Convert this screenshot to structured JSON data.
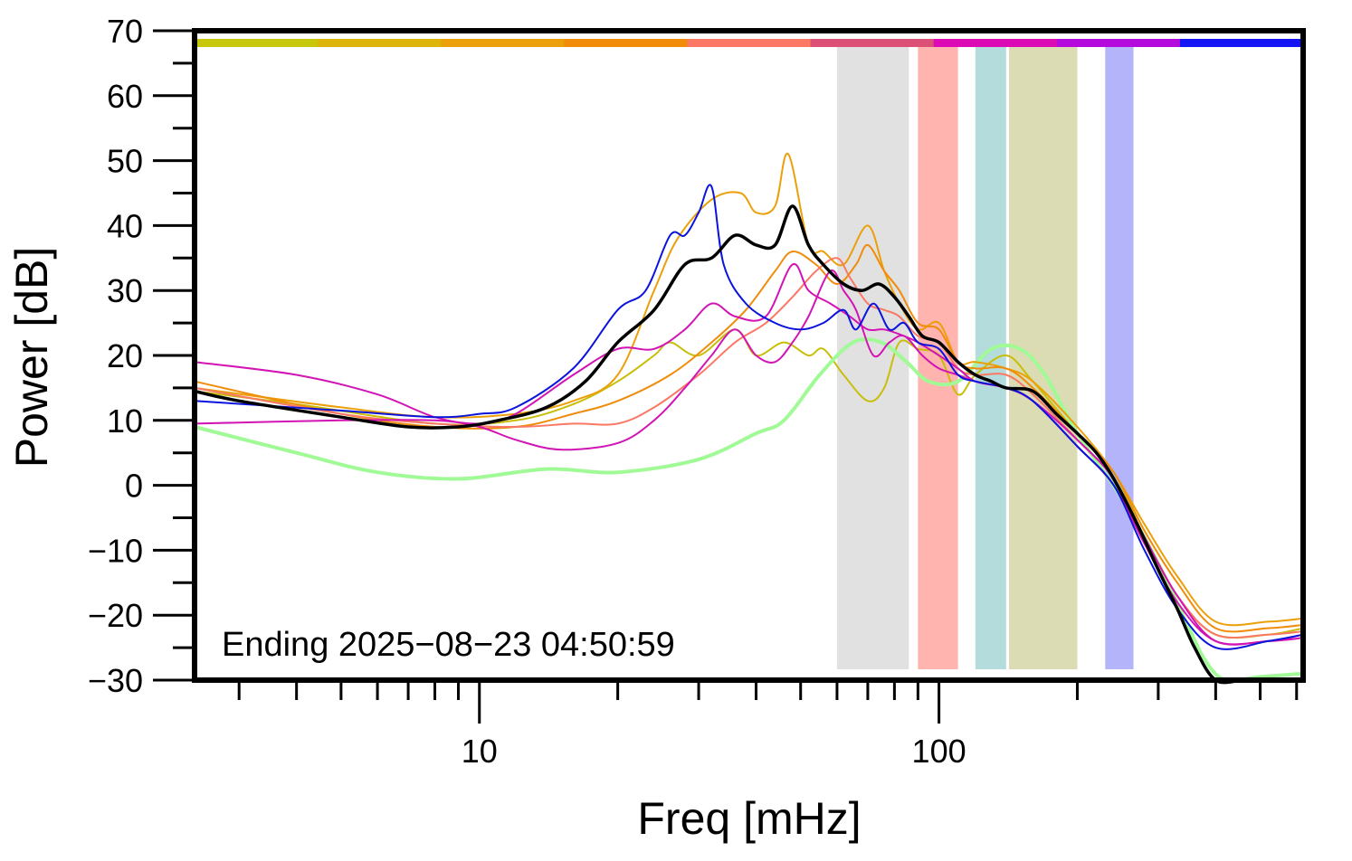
{
  "chart_data": {
    "type": "line",
    "xlabel": "Freq [mHz]",
    "ylabel": "Power [dB]",
    "x_scale": "log",
    "xlim": [
      2.4,
      620
    ],
    "ylim": [
      -30,
      70
    ],
    "x_ticklabels": [
      "10",
      "100"
    ],
    "y_ticklabels": [
      "70",
      "60",
      "50",
      "40",
      "30",
      "20",
      "10",
      "0",
      "−10",
      "−20",
      "−30"
    ],
    "annotation": "Ending 2025−08−23 04:50:59",
    "grid": false,
    "legend": "none",
    "colors": {
      "black": "#000000",
      "blue": "#0a14dc",
      "orange": "#eba00a",
      "orange2": "#f08c0a",
      "salmon": "#fa7864",
      "magenta": "#d214b4",
      "yellowgreen": "#c8be0a",
      "lightgreen": "#a0fa96"
    },
    "bands": [
      {
        "x0": 60,
        "x1": 86,
        "color": "#e1e1e1"
      },
      {
        "x0": 90,
        "x1": 110,
        "color": "#ffb4af"
      },
      {
        "x0": 120,
        "x1": 140,
        "color": "#b4dcdc"
      },
      {
        "x0": 142,
        "x1": 200,
        "color": "#dcdcb4"
      },
      {
        "x0": 230,
        "x1": 265,
        "color": "#b4b4fa"
      }
    ],
    "color_bar": [
      "#c8c80a",
      "#dcb40a",
      "#eba00a",
      "#f08c0a",
      "#fa7864",
      "#dc5078",
      "#dc0ab4",
      "#b40adc",
      "#1414f5"
    ],
    "series": [
      {
        "color_key": "yellowgreen",
        "width": 2,
        "points": [
          [
            2.4,
            14.5
          ],
          [
            4,
            12.5
          ],
          [
            8,
            9.5
          ],
          [
            12,
            10
          ],
          [
            16,
            12.5
          ],
          [
            20,
            16
          ],
          [
            24,
            20
          ],
          [
            26,
            22
          ],
          [
            30,
            20
          ],
          [
            36,
            24
          ],
          [
            40,
            20
          ],
          [
            46,
            22
          ],
          [
            52,
            20
          ],
          [
            56,
            21
          ],
          [
            62,
            17
          ],
          [
            70,
            13
          ],
          [
            76,
            15
          ],
          [
            82,
            22
          ],
          [
            90,
            21
          ],
          [
            100,
            20
          ],
          [
            110,
            14
          ],
          [
            120,
            17
          ],
          [
            140,
            20
          ],
          [
            160,
            16
          ],
          [
            200,
            8
          ],
          [
            240,
            2
          ],
          [
            280,
            -8
          ],
          [
            330,
            -17
          ],
          [
            400,
            -23
          ],
          [
            520,
            -23
          ],
          [
            620,
            -22
          ]
        ]
      },
      {
        "color_key": "lightgreen",
        "width": 4,
        "points": [
          [
            2.4,
            9
          ],
          [
            4,
            5
          ],
          [
            6,
            2
          ],
          [
            9,
            1
          ],
          [
            14,
            2.5
          ],
          [
            20,
            2
          ],
          [
            30,
            4
          ],
          [
            40,
            8
          ],
          [
            46,
            10
          ],
          [
            55,
            17
          ],
          [
            65,
            22
          ],
          [
            75,
            22
          ],
          [
            85,
            19
          ],
          [
            95,
            16
          ],
          [
            110,
            16
          ],
          [
            130,
            21
          ],
          [
            150,
            21
          ],
          [
            170,
            17
          ],
          [
            200,
            8
          ],
          [
            250,
            -2
          ],
          [
            300,
            -12
          ],
          [
            350,
            -22
          ],
          [
            380,
            -27
          ],
          [
            420,
            -30
          ],
          [
            500,
            -29.5
          ],
          [
            620,
            -29
          ]
        ]
      },
      {
        "color_key": "orange",
        "width": 2,
        "points": [
          [
            2.4,
            15
          ],
          [
            5,
            12
          ],
          [
            8,
            10.5
          ],
          [
            12,
            11
          ],
          [
            16,
            13
          ],
          [
            20,
            17
          ],
          [
            24,
            30
          ],
          [
            27,
            38
          ],
          [
            32,
            44
          ],
          [
            37,
            45
          ],
          [
            40,
            42
          ],
          [
            44,
            43
          ],
          [
            47,
            51
          ],
          [
            52,
            37
          ],
          [
            56,
            36
          ],
          [
            62,
            34
          ],
          [
            70,
            40
          ],
          [
            76,
            33
          ],
          [
            82,
            28
          ],
          [
            90,
            24
          ],
          [
            100,
            25
          ],
          [
            110,
            19
          ],
          [
            120,
            19
          ],
          [
            140,
            18
          ],
          [
            160,
            16
          ],
          [
            200,
            9
          ],
          [
            240,
            2
          ],
          [
            280,
            -6
          ],
          [
            330,
            -14
          ],
          [
            400,
            -21
          ],
          [
            520,
            -21
          ],
          [
            620,
            -20.5
          ]
        ]
      },
      {
        "color_key": "orange2",
        "width": 2,
        "points": [
          [
            2.4,
            16
          ],
          [
            5,
            11
          ],
          [
            8,
            9
          ],
          [
            12,
            9
          ],
          [
            16,
            11
          ],
          [
            20,
            13
          ],
          [
            26,
            17
          ],
          [
            32,
            22
          ],
          [
            38,
            27
          ],
          [
            44,
            33
          ],
          [
            48,
            36
          ],
          [
            54,
            34
          ],
          [
            60,
            31
          ],
          [
            66,
            34
          ],
          [
            70,
            37
          ],
          [
            76,
            33
          ],
          [
            82,
            30
          ],
          [
            90,
            25
          ],
          [
            100,
            24
          ],
          [
            110,
            19
          ],
          [
            120,
            18
          ],
          [
            140,
            18
          ],
          [
            160,
            15
          ],
          [
            200,
            8
          ],
          [
            240,
            2
          ],
          [
            280,
            -7
          ],
          [
            330,
            -15
          ],
          [
            400,
            -22
          ],
          [
            520,
            -22
          ],
          [
            620,
            -21.5
          ]
        ]
      },
      {
        "color_key": "salmon",
        "width": 2,
        "points": [
          [
            2.4,
            15
          ],
          [
            5,
            11
          ],
          [
            8,
            9.5
          ],
          [
            12,
            9
          ],
          [
            16,
            9.5
          ],
          [
            20,
            9.5
          ],
          [
            24,
            12
          ],
          [
            30,
            17
          ],
          [
            36,
            22
          ],
          [
            42,
            25
          ],
          [
            48,
            29
          ],
          [
            54,
            33
          ],
          [
            60,
            35
          ],
          [
            64,
            32
          ],
          [
            70,
            28
          ],
          [
            76,
            27
          ],
          [
            82,
            26
          ],
          [
            90,
            23
          ],
          [
            100,
            22
          ],
          [
            110,
            18
          ],
          [
            120,
            17
          ],
          [
            140,
            17
          ],
          [
            160,
            14
          ],
          [
            200,
            7
          ],
          [
            240,
            1
          ],
          [
            280,
            -8
          ],
          [
            330,
            -17
          ],
          [
            400,
            -23
          ],
          [
            520,
            -23
          ],
          [
            620,
            -22.5
          ]
        ]
      },
      {
        "color_key": "magenta",
        "width": 2,
        "points": [
          [
            2.4,
            9.5
          ],
          [
            5,
            10
          ],
          [
            8,
            10
          ],
          [
            10,
            9
          ],
          [
            12,
            7
          ],
          [
            15,
            5.5
          ],
          [
            20,
            6.5
          ],
          [
            24,
            10
          ],
          [
            28,
            15
          ],
          [
            32,
            20
          ],
          [
            36,
            24
          ],
          [
            40,
            20
          ],
          [
            44,
            19
          ],
          [
            48,
            22
          ],
          [
            52,
            26
          ],
          [
            58,
            33
          ],
          [
            62,
            30
          ],
          [
            66,
            27
          ],
          [
            72,
            20
          ],
          [
            78,
            22
          ],
          [
            84,
            23
          ],
          [
            92,
            20
          ],
          [
            100,
            18
          ],
          [
            110,
            17
          ],
          [
            120,
            16
          ],
          [
            140,
            15
          ],
          [
            160,
            13
          ],
          [
            200,
            7
          ],
          [
            240,
            1
          ],
          [
            280,
            -8
          ],
          [
            330,
            -17
          ],
          [
            400,
            -24
          ],
          [
            520,
            -24
          ],
          [
            620,
            -23.5
          ]
        ]
      },
      {
        "color_key": "magenta",
        "width": 2,
        "points": [
          [
            2.4,
            19
          ],
          [
            4,
            17
          ],
          [
            6,
            14
          ],
          [
            8,
            10.5
          ],
          [
            10,
            9.5
          ],
          [
            12,
            11
          ],
          [
            16,
            17
          ],
          [
            20,
            21
          ],
          [
            24,
            21
          ],
          [
            28,
            24
          ],
          [
            32,
            28
          ],
          [
            36,
            26
          ],
          [
            42,
            26
          ],
          [
            48,
            34
          ],
          [
            52,
            30
          ],
          [
            58,
            28
          ],
          [
            64,
            26
          ],
          [
            70,
            24
          ],
          [
            76,
            24
          ],
          [
            84,
            23
          ],
          [
            90,
            22
          ],
          [
            100,
            20
          ],
          [
            110,
            18
          ],
          [
            120,
            16
          ],
          [
            140,
            15
          ],
          [
            160,
            13
          ],
          [
            200,
            6
          ],
          [
            240,
            0
          ],
          [
            280,
            -9
          ],
          [
            330,
            -18
          ],
          [
            400,
            -24
          ],
          [
            520,
            -24
          ],
          [
            620,
            -23
          ]
        ]
      },
      {
        "color_key": "blue",
        "width": 2,
        "points": [
          [
            2.4,
            13
          ],
          [
            5,
            11.5
          ],
          [
            8,
            10.5
          ],
          [
            10,
            11
          ],
          [
            12,
            12
          ],
          [
            16,
            18
          ],
          [
            20,
            27
          ],
          [
            23,
            30
          ],
          [
            26,
            38.5
          ],
          [
            28,
            38.5
          ],
          [
            30,
            42
          ],
          [
            32,
            46
          ],
          [
            34,
            34
          ],
          [
            38,
            28
          ],
          [
            44,
            25
          ],
          [
            50,
            24
          ],
          [
            56,
            25
          ],
          [
            62,
            27
          ],
          [
            66,
            24
          ],
          [
            72,
            28
          ],
          [
            78,
            24
          ],
          [
            84,
            25
          ],
          [
            90,
            22
          ],
          [
            100,
            21
          ],
          [
            110,
            17
          ],
          [
            120,
            16
          ],
          [
            140,
            15
          ],
          [
            160,
            13
          ],
          [
            200,
            6
          ],
          [
            240,
            0
          ],
          [
            280,
            -10
          ],
          [
            330,
            -19
          ],
          [
            400,
            -25
          ],
          [
            520,
            -24
          ],
          [
            620,
            -23
          ]
        ]
      },
      {
        "color_key": "black",
        "width": 3.5,
        "points": [
          [
            2.4,
            14.5
          ],
          [
            3,
            13
          ],
          [
            5,
            10.5
          ],
          [
            7,
            9
          ],
          [
            9,
            9
          ],
          [
            11,
            10
          ],
          [
            14,
            12
          ],
          [
            17,
            16
          ],
          [
            20,
            22
          ],
          [
            24,
            27
          ],
          [
            28,
            34
          ],
          [
            32,
            35
          ],
          [
            36,
            38.5
          ],
          [
            40,
            37
          ],
          [
            44,
            37
          ],
          [
            48,
            43
          ],
          [
            52,
            37
          ],
          [
            56,
            34
          ],
          [
            62,
            31
          ],
          [
            68,
            30
          ],
          [
            74,
            31
          ],
          [
            80,
            29
          ],
          [
            86,
            26
          ],
          [
            92,
            23
          ],
          [
            100,
            22
          ],
          [
            110,
            19
          ],
          [
            120,
            17
          ],
          [
            130,
            16
          ],
          [
            140,
            15
          ],
          [
            160,
            14.5
          ],
          [
            180,
            11
          ],
          [
            200,
            8
          ],
          [
            220,
            5
          ],
          [
            240,
            1
          ],
          [
            270,
            -6
          ],
          [
            300,
            -13
          ],
          [
            330,
            -19
          ],
          [
            360,
            -25
          ],
          [
            400,
            -30
          ],
          [
            460,
            -30
          ],
          [
            520,
            -30
          ],
          [
            620,
            -30
          ]
        ]
      }
    ]
  }
}
